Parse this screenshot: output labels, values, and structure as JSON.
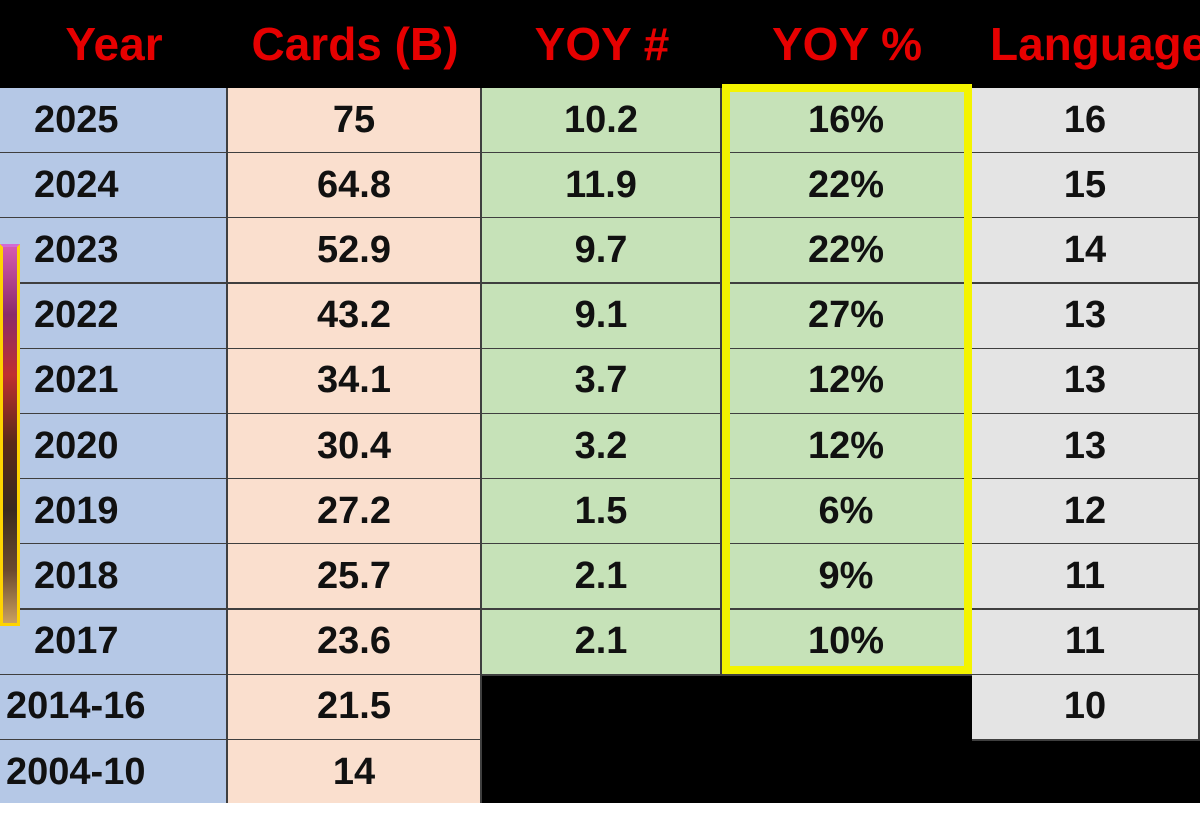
{
  "table": {
    "headers": {
      "year": "Year",
      "cards": "Cards (B)",
      "yoy_num": "YOY #",
      "yoy_pct": "YOY %",
      "languages": "Languages"
    },
    "rows": [
      {
        "year": "2025",
        "cards": "75",
        "yoy_num": "10.2",
        "yoy_pct": "16%",
        "languages": "16"
      },
      {
        "year": "2024",
        "cards": "64.8",
        "yoy_num": "11.9",
        "yoy_pct": "22%",
        "languages": "15"
      },
      {
        "year": "2023",
        "cards": "52.9",
        "yoy_num": "9.7",
        "yoy_pct": "22%",
        "languages": "14"
      },
      {
        "year": "2022",
        "cards": "43.2",
        "yoy_num": "9.1",
        "yoy_pct": "27%",
        "languages": "13"
      },
      {
        "year": "2021",
        "cards": "34.1",
        "yoy_num": "3.7",
        "yoy_pct": "12%",
        "languages": "13"
      },
      {
        "year": "2020",
        "cards": "30.4",
        "yoy_num": "3.2",
        "yoy_pct": "12%",
        "languages": "13"
      },
      {
        "year": "2019",
        "cards": "27.2",
        "yoy_num": "1.5",
        "yoy_pct": "6%",
        "languages": "12"
      },
      {
        "year": "2018",
        "cards": "25.7",
        "yoy_num": "2.1",
        "yoy_pct": "9%",
        "languages": "11"
      },
      {
        "year": "2017",
        "cards": "23.6",
        "yoy_num": "2.1",
        "yoy_pct": "10%",
        "languages": "11"
      },
      {
        "year": "2014-16",
        "cards": "21.5",
        "yoy_num": "",
        "yoy_pct": "",
        "languages": "10"
      },
      {
        "year": "2004-10",
        "cards": "14",
        "yoy_num": "",
        "yoy_pct": "",
        "languages": ""
      }
    ]
  },
  "colors": {
    "header_text": "#e60000",
    "header_bg": "#000000",
    "year_col": "#b5c8e6",
    "cards_col": "#fadfce",
    "yoy_col": "#c6e2b8",
    "languages_col": "#e4e4e4",
    "highlight": "#f4f400"
  },
  "footer": {
    "text": ""
  }
}
